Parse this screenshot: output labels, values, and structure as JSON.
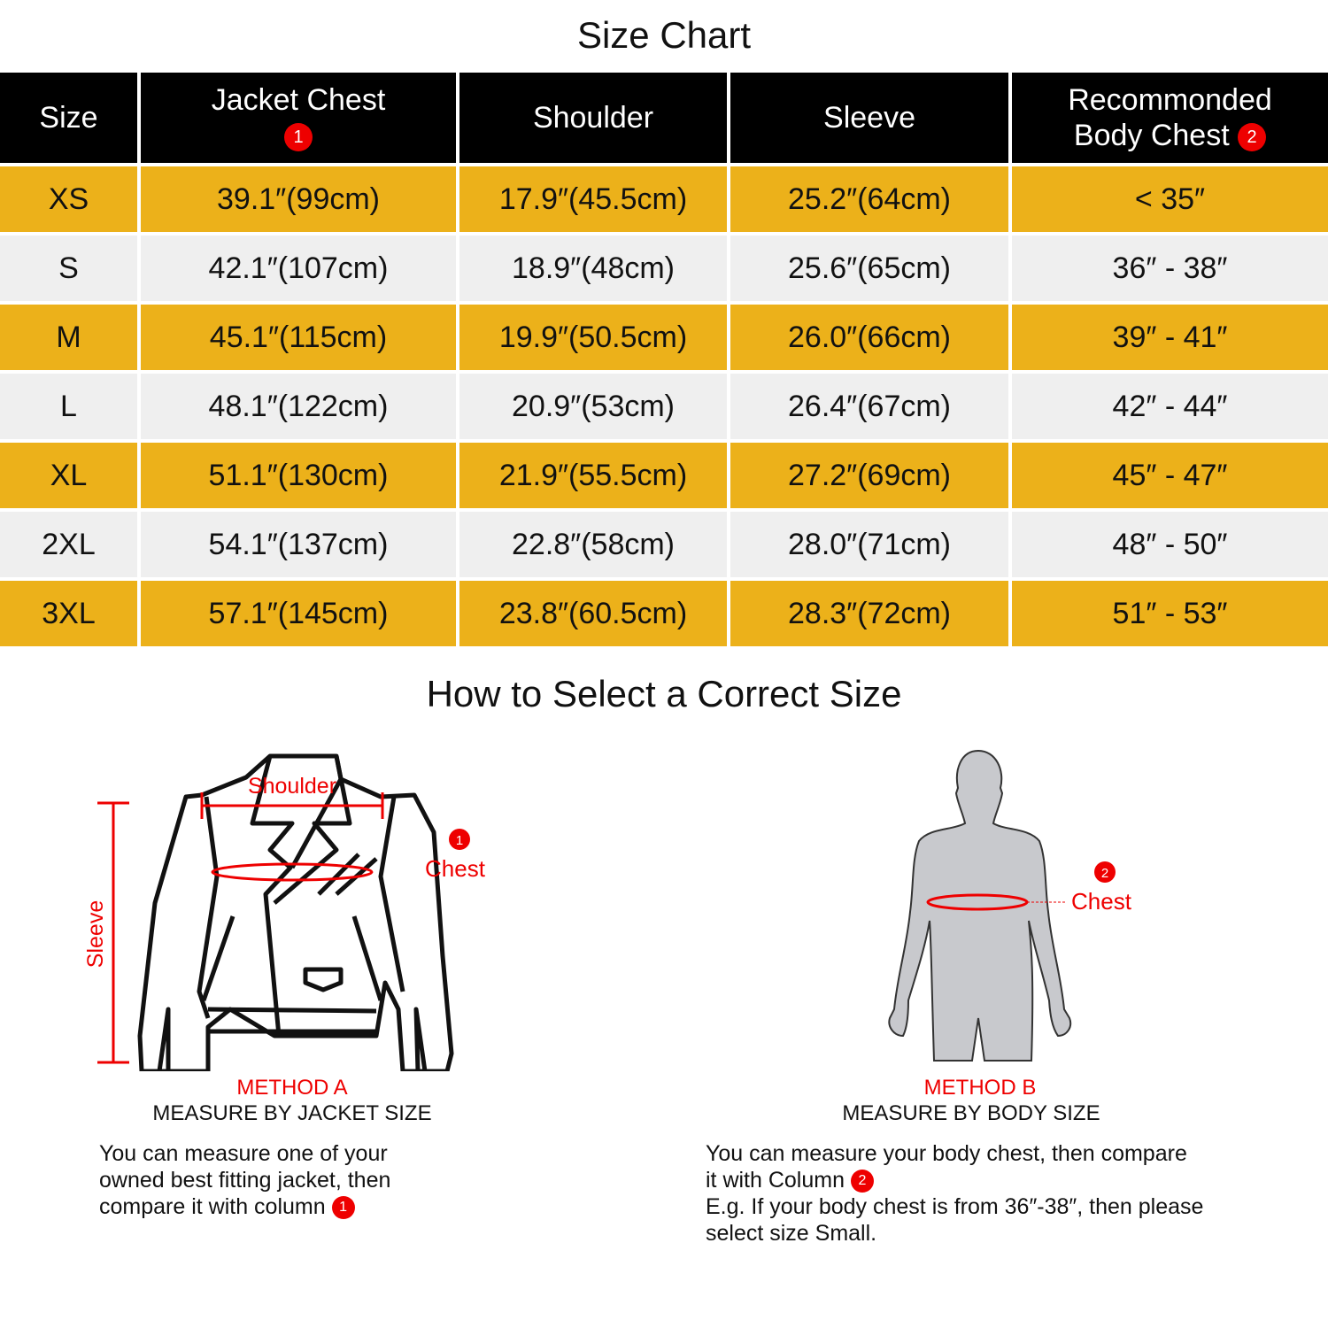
{
  "title": "Size Chart",
  "headers": {
    "size": "Size",
    "jacket_chest": "Jacket Chest",
    "shoulder": "Shoulder",
    "sleeve": "Sleeve",
    "rec_line1": "Recommonded",
    "rec_line2": "Body  Chest",
    "badge1": "1",
    "badge2": "2"
  },
  "rows": [
    {
      "size": "XS",
      "chest": "39.1″(99cm)",
      "shoulder": "17.9″(45.5cm)",
      "sleeve": "25.2″(64cm)",
      "body": "< 35″"
    },
    {
      "size": "S",
      "chest": "42.1″(107cm)",
      "shoulder": "18.9″(48cm)",
      "sleeve": "25.6″(65cm)",
      "body": "36″ - 38″"
    },
    {
      "size": "M",
      "chest": "45.1″(115cm)",
      "shoulder": "19.9″(50.5cm)",
      "sleeve": "26.0″(66cm)",
      "body": "39″ - 41″"
    },
    {
      "size": "L",
      "chest": "48.1″(122cm)",
      "shoulder": "20.9″(53cm)",
      "sleeve": "26.4″(67cm)",
      "body": "42″ - 44″"
    },
    {
      "size": "XL",
      "chest": "51.1″(130cm)",
      "shoulder": "21.9″(55.5cm)",
      "sleeve": "27.2″(69cm)",
      "body": "45″ - 47″"
    },
    {
      "size": "2XL",
      "chest": "54.1″(137cm)",
      "shoulder": "22.8″(58cm)",
      "sleeve": "28.0″(71cm)",
      "body": "48″ - 50″"
    },
    {
      "size": "3XL",
      "chest": "57.1″(145cm)",
      "shoulder": "23.8″(60.5cm)",
      "sleeve": "28.3″(72cm)",
      "body": "51″ - 53″"
    }
  ],
  "guide": {
    "title": "How to Select a Correct Size",
    "a": {
      "shoulder": "Shoulder",
      "sleeve": "Sleeve",
      "chest": "Chest",
      "method": "METHOD A",
      "subtitle": "MEASURE BY JACKET SIZE",
      "desc1": "You can measure one of your",
      "desc2": "owned best fitting jacket, then",
      "desc3": "compare it with column"
    },
    "b": {
      "chest": "Chest",
      "method": "METHOD B",
      "subtitle": "MEASURE BY BODY SIZE",
      "desc1": "You can measure your body chest, then compare",
      "desc2": "it with Column",
      "desc3": "E.g. If your body chest is from 36″-38″, then please",
      "desc4": "select size Small."
    }
  },
  "colors": {
    "gold": "#ECB11A",
    "light": "#EFEFEF",
    "header": "#000000",
    "accent": "#E00000"
  }
}
